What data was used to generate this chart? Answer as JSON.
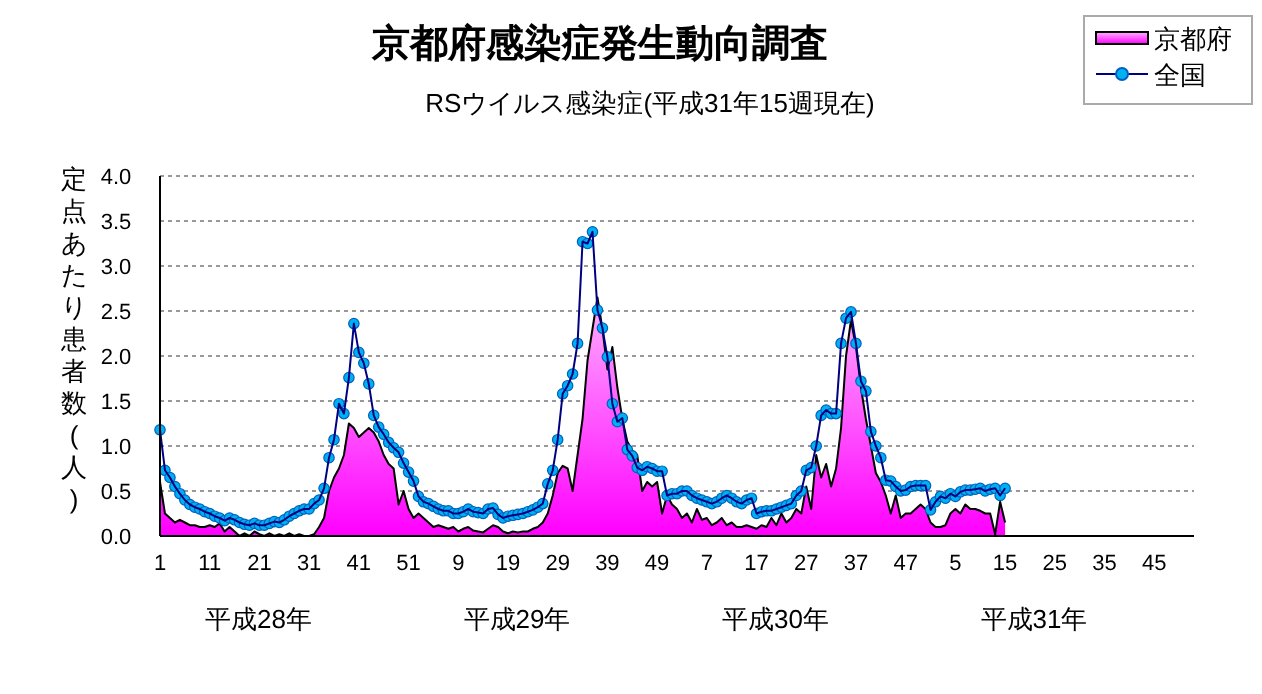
{
  "chart_data": {
    "type": "area",
    "title": "京都府感染症発生動向調査",
    "subtitle": "RSウイルス感染症(平成31年15週現在)",
    "ylabel": "定点あたり患者数(人)",
    "categories": [
      "1",
      null,
      null,
      null,
      null,
      null,
      null,
      null,
      null,
      null,
      "11",
      null,
      null,
      null,
      null,
      null,
      null,
      null,
      null,
      null,
      "21",
      null,
      null,
      null,
      null,
      null,
      null,
      null,
      null,
      null,
      "31",
      null,
      null,
      null,
      null,
      null,
      null,
      null,
      null,
      null,
      "41",
      null,
      null,
      null,
      null,
      null,
      null,
      null,
      null,
      null,
      "51",
      null,
      null,
      null,
      null,
      null,
      null,
      null,
      null,
      null,
      "9",
      null,
      null,
      null,
      null,
      null,
      null,
      null,
      null,
      null,
      "19",
      null,
      null,
      null,
      null,
      null,
      null,
      null,
      null,
      null,
      "29",
      null,
      null,
      null,
      null,
      null,
      null,
      null,
      null,
      null,
      "39",
      null,
      null,
      null,
      null,
      null,
      null,
      null,
      null,
      null,
      "49",
      null,
      null,
      null,
      null,
      null,
      null,
      null,
      null,
      null,
      "7",
      null,
      null,
      null,
      null,
      null,
      null,
      null,
      null,
      null,
      "17",
      null,
      null,
      null,
      null,
      null,
      null,
      null,
      null,
      null,
      "27",
      null,
      null,
      null,
      null,
      null,
      null,
      null,
      null,
      null,
      "37",
      null,
      null,
      null,
      null,
      null,
      null,
      null,
      null,
      null,
      "47",
      null,
      null,
      null,
      null,
      null,
      null,
      null,
      null,
      null,
      "5",
      null,
      null,
      null,
      null,
      null,
      null,
      null,
      null,
      null,
      "15",
      null,
      null,
      null,
      null,
      null,
      null,
      null,
      null,
      null,
      "25",
      null,
      null,
      null,
      null,
      null,
      null,
      null,
      null,
      null,
      "35",
      null,
      null,
      null,
      null,
      null,
      null,
      null,
      null,
      null,
      "45",
      null,
      null,
      null,
      null,
      null,
      null,
      null
    ],
    "ylim": [
      0,
      4
    ],
    "yticks": [
      {
        "value": 0,
        "label": "0.0"
      },
      {
        "value": 0.5,
        "label": "0.5"
      },
      {
        "value": 1,
        "label": "1.0"
      },
      {
        "value": 1.5,
        "label": "1.5"
      },
      {
        "value": 2,
        "label": "2.0"
      },
      {
        "value": 2.5,
        "label": "2.5"
      },
      {
        "value": 3,
        "label": "3.0"
      },
      {
        "value": 3.5,
        "label": "3.5"
      },
      {
        "value": 4,
        "label": "4.0"
      }
    ],
    "grid": "y",
    "legend": "top right",
    "annotations": [
      "平成28年",
      "平成29年",
      "平成30年",
      "平成31年"
    ],
    "series": [
      {
        "name": "京都府",
        "color": "#ff00ff",
        "values": [
          0.6,
          0.25,
          0.2,
          0.15,
          0.18,
          0.15,
          0.12,
          0.12,
          0.1,
          0.1,
          0.12,
          0.1,
          0.14,
          0.05,
          0.1,
          0.05,
          0,
          0.03,
          0,
          0.05,
          0.02,
          0,
          0.03,
          0,
          0.02,
          0,
          0.03,
          0,
          0.02,
          0,
          0,
          0.02,
          0.1,
          0.2,
          0.5,
          0.65,
          0.75,
          0.9,
          1.25,
          1.2,
          1.1,
          1.15,
          1.2,
          1.15,
          1.05,
          0.9,
          0.8,
          0.75,
          0.35,
          0.5,
          0.3,
          0.2,
          0.25,
          0.2,
          0.15,
          0.1,
          0.12,
          0.1,
          0.08,
          0.1,
          0.05,
          0.08,
          0.1,
          0.06,
          0.05,
          0.04,
          0.08,
          0.12,
          0.1,
          0.05,
          0.03,
          0.05,
          0.04,
          0.05,
          0.05,
          0.08,
          0.1,
          0.15,
          0.25,
          0.45,
          0.7,
          0.78,
          0.75,
          0.5,
          0.9,
          1.3,
          1.95,
          2.3,
          2.65,
          2.3,
          1.85,
          2.1,
          1.65,
          1.3,
          1.05,
          0.95,
          0.9,
          0.5,
          0.6,
          0.55,
          0.6,
          0.25,
          0.45,
          0.35,
          0.3,
          0.2,
          0.25,
          0.15,
          0.3,
          0.18,
          0.2,
          0.12,
          0.15,
          0.2,
          0.12,
          0.15,
          0.1,
          0.1,
          0.12,
          0.1,
          0.08,
          0.12,
          0.1,
          0.2,
          0.12,
          0.25,
          0.15,
          0.2,
          0.3,
          0.25,
          0.55,
          0.3,
          0.9,
          0.65,
          0.8,
          0.55,
          0.75,
          1.2,
          2.0,
          2.4,
          2.1,
          1.65,
          1.3,
          1.0,
          0.7,
          0.6,
          0.45,
          0.25,
          0.45,
          0.2,
          0.25,
          0.25,
          0.3,
          0.35,
          0.3,
          0.15,
          0.1,
          0.1,
          0.12,
          0.25,
          0.3,
          0.25,
          0.35,
          0.3,
          0.3,
          0.28,
          0.25,
          0.25,
          0.02,
          0.38,
          0.15,
          null,
          null,
          null,
          null,
          null,
          null,
          null,
          null,
          null,
          null,
          null,
          null,
          null,
          null,
          null,
          null,
          null,
          null,
          null,
          null,
          null,
          null,
          null,
          null,
          null,
          null,
          null,
          null,
          null,
          null,
          null,
          null,
          null,
          null,
          null,
          null,
          null
        ]
      },
      {
        "name": "全国",
        "type": "line",
        "color": "#00b0f0",
        "marker": "circle",
        "values": [
          1.18,
          0.73,
          0.65,
          0.55,
          0.47,
          0.4,
          0.35,
          0.32,
          0.3,
          0.27,
          0.25,
          0.22,
          0.2,
          0.17,
          0.2,
          0.18,
          0.15,
          0.13,
          0.12,
          0.14,
          0.12,
          0.12,
          0.14,
          0.16,
          0.15,
          0.18,
          0.22,
          0.25,
          0.28,
          0.3,
          0.3,
          0.36,
          0.4,
          0.53,
          0.87,
          1.07,
          1.47,
          1.36,
          1.76,
          2.36,
          2.04,
          1.92,
          1.69,
          1.34,
          1.21,
          1.13,
          1.04,
          0.98,
          0.93,
          0.81,
          0.71,
          0.61,
          0.44,
          0.38,
          0.36,
          0.33,
          0.3,
          0.28,
          0.28,
          0.25,
          0.25,
          0.27,
          0.3,
          0.27,
          0.26,
          0.25,
          0.3,
          0.31,
          0.24,
          0.2,
          0.22,
          0.23,
          0.24,
          0.25,
          0.27,
          0.29,
          0.32,
          0.36,
          0.58,
          0.73,
          1.07,
          1.58,
          1.67,
          1.8,
          2.14,
          3.27,
          3.25,
          3.38,
          2.51,
          2.31,
          1.99,
          1.47,
          1.27,
          1.31,
          0.96,
          0.89,
          0.76,
          0.73,
          0.77,
          0.75,
          0.72,
          0.72,
          0.45,
          0.47,
          0.47,
          0.5,
          0.5,
          0.45,
          0.42,
          0.4,
          0.38,
          0.36,
          0.38,
          0.42,
          0.45,
          0.42,
          0.38,
          0.36,
          0.4,
          0.42,
          0.25,
          0.27,
          0.28,
          0.28,
          0.3,
          0.32,
          0.34,
          0.36,
          0.45,
          0.5,
          0.73,
          0.76,
          1.0,
          1.34,
          1.4,
          1.36,
          1.36,
          2.14,
          2.42,
          2.49,
          2.14,
          1.72,
          1.61,
          1.16,
          1.0,
          0.87,
          0.62,
          0.61,
          0.55,
          0.5,
          0.51,
          0.55,
          0.56,
          0.56,
          0.56,
          0.29,
          0.38,
          0.44,
          0.42,
          0.47,
          0.44,
          0.49,
          0.51,
          0.51,
          0.52,
          0.53,
          0.5,
          0.52,
          0.53,
          0.45,
          0.53,
          null,
          null,
          null,
          null,
          null,
          null,
          null,
          null,
          null,
          null,
          null,
          null,
          null,
          null,
          null,
          null,
          null,
          null,
          null,
          null,
          null,
          null,
          null,
          null,
          null,
          null,
          null,
          null,
          null,
          null,
          null,
          null,
          null,
          null,
          null,
          null,
          null
        ]
      }
    ]
  }
}
